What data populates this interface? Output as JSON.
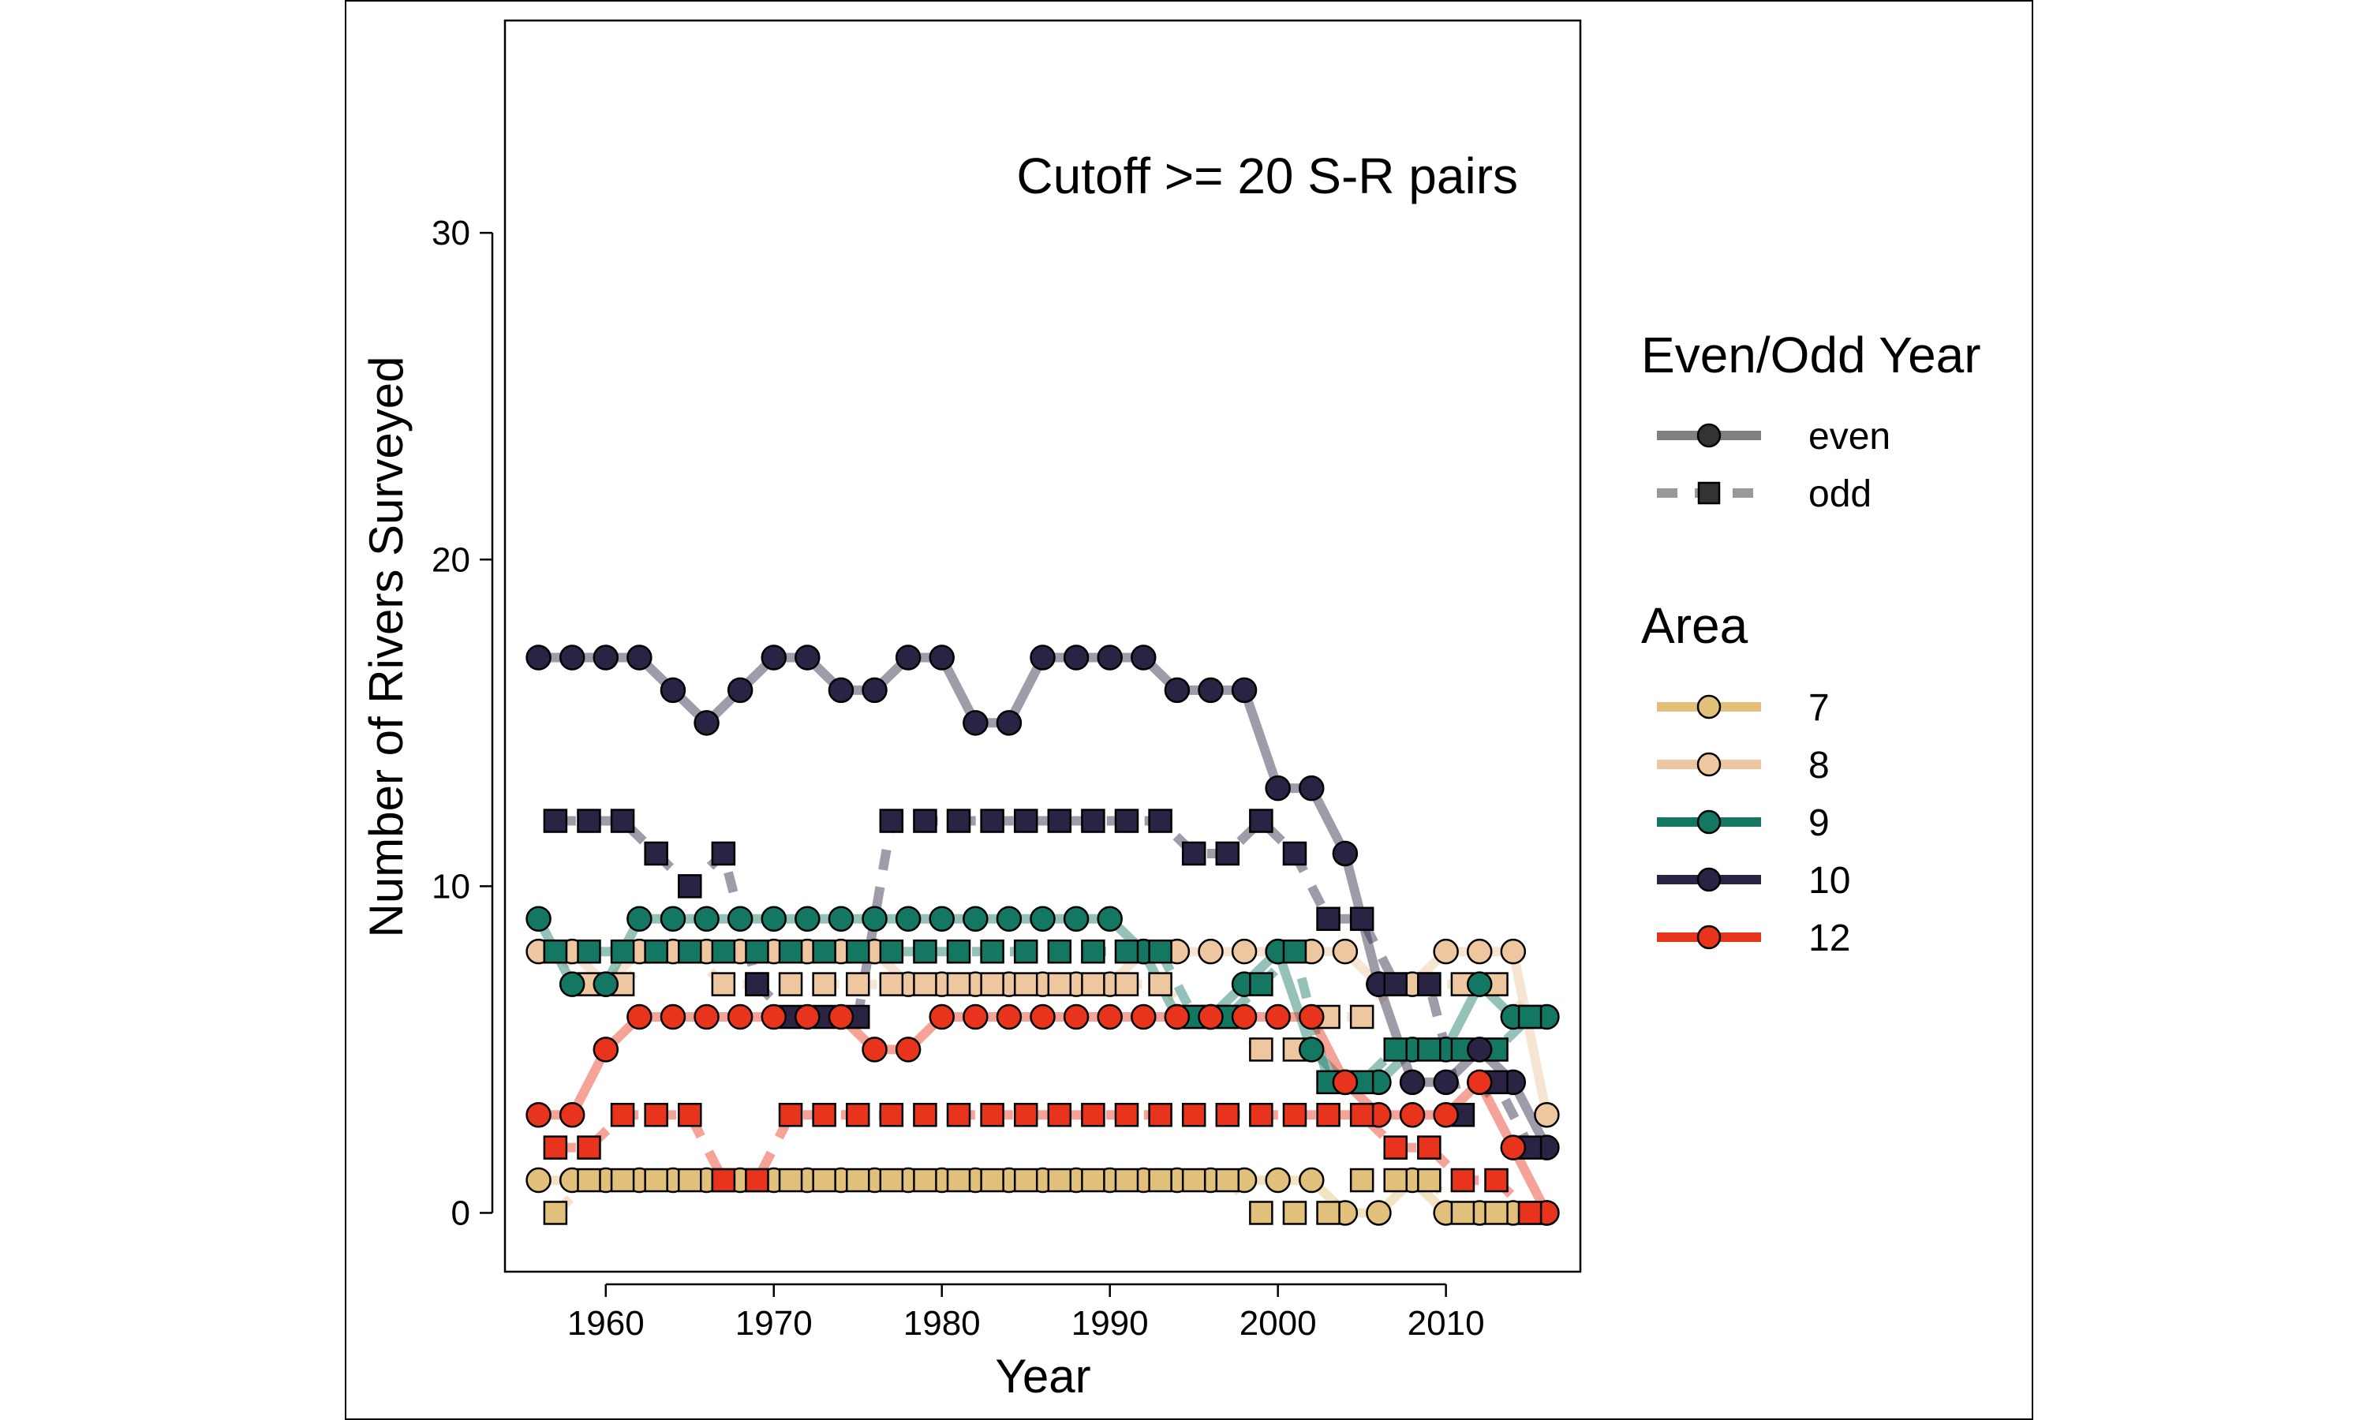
{
  "annotation": "Cutoff >= 20 S-R pairs",
  "legend": {
    "linetype_title": "Even/Odd Year",
    "linetype_items": [
      {
        "label": "even",
        "shape": "circle",
        "dash": "solid"
      },
      {
        "label": "odd",
        "shape": "square",
        "dash": "dashed"
      }
    ],
    "area_title": "Area",
    "area_items": [
      {
        "label": "7",
        "color": "#E0C07A"
      },
      {
        "label": "8",
        "color": "#EEC6A0"
      },
      {
        "label": "9",
        "color": "#137762"
      },
      {
        "label": "10",
        "color": "#2B2343"
      },
      {
        "label": "12",
        "color": "#E8341C"
      }
    ]
  },
  "chart_data": {
    "type": "line",
    "xlabel": "Year",
    "ylabel": "Number of Rivers Surveyed",
    "xlim": [
      1954,
      2018
    ],
    "ylim": [
      -1.8,
      36.5
    ],
    "xticks": [
      1960,
      1970,
      1980,
      1990,
      2000,
      2010
    ],
    "yticks": [
      0,
      10,
      20,
      30
    ],
    "legend_position": "right",
    "grid": false,
    "series": [
      {
        "area": "7",
        "parity": "even",
        "color": "#E0C07A",
        "x": [
          1956,
          1958,
          1960,
          1962,
          1964,
          1966,
          1968,
          1970,
          1972,
          1974,
          1976,
          1978,
          1980,
          1982,
          1984,
          1986,
          1988,
          1990,
          1992,
          1994,
          1996,
          1998,
          2000,
          2002,
          2004,
          2006,
          2008,
          2010,
          2012,
          2014,
          2016
        ],
        "y": [
          1,
          1,
          1,
          1,
          1,
          1,
          1,
          1,
          1,
          1,
          1,
          1,
          1,
          1,
          1,
          1,
          1,
          1,
          1,
          1,
          1,
          1,
          1,
          1,
          0,
          0,
          1,
          0,
          0,
          0,
          0
        ]
      },
      {
        "area": "7",
        "parity": "odd",
        "color": "#E0C07A",
        "x": [
          1957,
          1959,
          1961,
          1963,
          1965,
          1967,
          1969,
          1971,
          1973,
          1975,
          1977,
          1979,
          1981,
          1983,
          1985,
          1987,
          1989,
          1991,
          1993,
          1995,
          1997,
          1999,
          2001,
          2003,
          2005,
          2007,
          2009,
          2011,
          2013,
          2015
        ],
        "y": [
          0,
          1,
          1,
          1,
          1,
          1,
          1,
          1,
          1,
          1,
          1,
          1,
          1,
          1,
          1,
          1,
          1,
          1,
          1,
          1,
          1,
          0,
          0,
          0,
          1,
          1,
          1,
          0,
          0,
          0
        ]
      },
      {
        "area": "8",
        "parity": "even",
        "color": "#EEC6A0",
        "x": [
          1956,
          1958,
          1960,
          1962,
          1964,
          1966,
          1968,
          1970,
          1972,
          1974,
          1976,
          1978,
          1980,
          1982,
          1984,
          1986,
          1988,
          1990,
          1992,
          1994,
          1996,
          1998,
          2000,
          2002,
          2004,
          2006,
          2008,
          2010,
          2012,
          2014,
          2016
        ],
        "y": [
          8,
          8,
          7,
          8,
          8,
          8,
          8,
          8,
          8,
          8,
          8,
          7,
          7,
          7,
          7,
          7,
          7,
          7,
          8,
          8,
          8,
          8,
          8,
          8,
          8,
          7,
          7,
          8,
          8,
          8,
          3
        ]
      },
      {
        "area": "8",
        "parity": "odd",
        "color": "#EEC6A0",
        "x": [
          1957,
          1959,
          1961,
          1963,
          1965,
          1967,
          1969,
          1971,
          1973,
          1975,
          1977,
          1979,
          1981,
          1983,
          1985,
          1987,
          1989,
          1991,
          1993,
          1995,
          1997,
          1999,
          2001,
          2003,
          2005,
          2007,
          2009,
          2011,
          2013,
          2015
        ],
        "y": [
          8,
          7,
          7,
          8,
          8,
          7,
          7,
          7,
          7,
          7,
          7,
          7,
          7,
          7,
          7,
          7,
          7,
          7,
          7,
          6,
          6,
          5,
          5,
          6,
          6,
          7,
          7,
          7,
          7,
          6
        ]
      },
      {
        "area": "9",
        "parity": "even",
        "color": "#137762",
        "x": [
          1956,
          1958,
          1960,
          1962,
          1964,
          1966,
          1968,
          1970,
          1972,
          1974,
          1976,
          1978,
          1980,
          1982,
          1984,
          1986,
          1988,
          1990,
          1992,
          1994,
          1996,
          1998,
          2000,
          2002,
          2004,
          2006,
          2008,
          2010,
          2012,
          2014,
          2016
        ],
        "y": [
          9,
          7,
          7,
          9,
          9,
          9,
          9,
          9,
          9,
          9,
          9,
          9,
          9,
          9,
          9,
          9,
          9,
          9,
          8,
          6,
          6,
          7,
          8,
          5,
          4,
          4,
          5,
          5,
          7,
          6,
          6
        ]
      },
      {
        "area": "9",
        "parity": "odd",
        "color": "#137762",
        "x": [
          1957,
          1959,
          1961,
          1963,
          1965,
          1967,
          1969,
          1971,
          1973,
          1975,
          1977,
          1979,
          1981,
          1983,
          1985,
          1987,
          1989,
          1991,
          1993,
          1995,
          1997,
          1999,
          2001,
          2003,
          2005,
          2007,
          2009,
          2011,
          2013,
          2015
        ],
        "y": [
          8,
          8,
          8,
          8,
          8,
          8,
          8,
          8,
          8,
          8,
          8,
          8,
          8,
          8,
          8,
          8,
          8,
          8,
          8,
          6,
          6,
          7,
          8,
          4,
          4,
          5,
          5,
          5,
          5,
          6
        ]
      },
      {
        "area": "10",
        "parity": "even",
        "color": "#2B2343",
        "x": [
          1956,
          1958,
          1960,
          1962,
          1964,
          1966,
          1968,
          1970,
          1972,
          1974,
          1976,
          1978,
          1980,
          1982,
          1984,
          1986,
          1988,
          1990,
          1992,
          1994,
          1996,
          1998,
          2000,
          2002,
          2004,
          2006,
          2008,
          2010,
          2012,
          2014,
          2016
        ],
        "y": [
          17,
          17,
          17,
          17,
          16,
          15,
          16,
          17,
          17,
          16,
          16,
          17,
          17,
          15,
          15,
          17,
          17,
          17,
          17,
          16,
          16,
          16,
          13,
          13,
          11,
          7,
          4,
          4,
          5,
          4,
          2
        ]
      },
      {
        "area": "10",
        "parity": "odd",
        "color": "#2B2343",
        "x": [
          1957,
          1959,
          1961,
          1963,
          1965,
          1967,
          1969,
          1971,
          1973,
          1975,
          1977,
          1979,
          1981,
          1983,
          1985,
          1987,
          1989,
          1991,
          1993,
          1995,
          1997,
          1999,
          2001,
          2003,
          2005,
          2007,
          2009,
          2011,
          2013,
          2015
        ],
        "y": [
          12,
          12,
          12,
          11,
          10,
          11,
          7,
          6,
          6,
          6,
          12,
          12,
          12,
          12,
          12,
          12,
          12,
          12,
          12,
          11,
          11,
          12,
          11,
          9,
          9,
          7,
          7,
          3,
          4,
          2
        ]
      },
      {
        "area": "12",
        "parity": "even",
        "color": "#E8341C",
        "x": [
          1956,
          1958,
          1960,
          1962,
          1964,
          1966,
          1968,
          1970,
          1972,
          1974,
          1976,
          1978,
          1980,
          1982,
          1984,
          1986,
          1988,
          1990,
          1992,
          1994,
          1996,
          1998,
          2000,
          2002,
          2004,
          2006,
          2008,
          2010,
          2012,
          2014,
          2016
        ],
        "y": [
          3,
          3,
          5,
          6,
          6,
          6,
          6,
          6,
          6,
          6,
          5,
          5,
          6,
          6,
          6,
          6,
          6,
          6,
          6,
          6,
          6,
          6,
          6,
          6,
          4,
          3,
          3,
          3,
          4,
          2,
          0
        ]
      },
      {
        "area": "12",
        "parity": "odd",
        "color": "#E8341C",
        "x": [
          1957,
          1959,
          1961,
          1963,
          1965,
          1967,
          1969,
          1971,
          1973,
          1975,
          1977,
          1979,
          1981,
          1983,
          1985,
          1987,
          1989,
          1991,
          1993,
          1995,
          1997,
          1999,
          2001,
          2003,
          2005,
          2007,
          2009,
          2011,
          2013,
          2015
        ],
        "y": [
          2,
          2,
          3,
          3,
          3,
          1,
          1,
          3,
          3,
          3,
          3,
          3,
          3,
          3,
          3,
          3,
          3,
          3,
          3,
          3,
          3,
          3,
          3,
          3,
          3,
          2,
          2,
          1,
          1,
          0
        ]
      }
    ]
  }
}
